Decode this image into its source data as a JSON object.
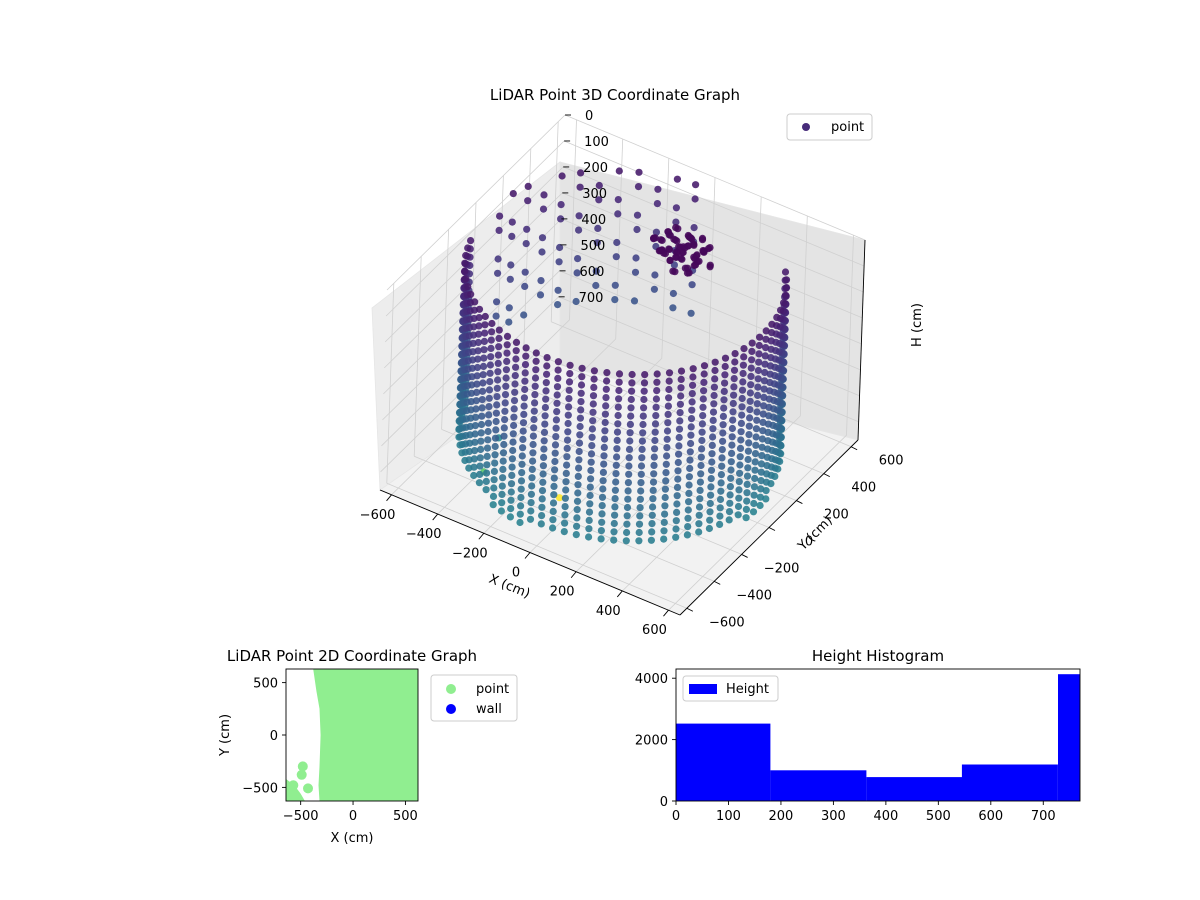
{
  "figure": {
    "background": "#ffffff"
  },
  "chart_data": [
    {
      "type": "scatter",
      "projection": "3d",
      "title": "LiDAR Point 3D Coordinate Graph",
      "xlabel": "X (cm)",
      "ylabel": "Y (cm)",
      "zlabel": "H (cm)",
      "xlim": [
        -650,
        650
      ],
      "ylim": [
        -650,
        650
      ],
      "zlim": [
        0,
        770
      ],
      "z_inverted": true,
      "xticks": [
        "−600",
        "−400",
        "−200",
        "0",
        "200",
        "400",
        "600"
      ],
      "yticks": [
        "−600",
        "−400",
        "−200",
        "0",
        "200",
        "400",
        "600"
      ],
      "zticks": [
        "0",
        "100",
        "200",
        "300",
        "400",
        "500",
        "600",
        "700"
      ],
      "colormap": "viridis",
      "grid": true,
      "legend": {
        "position": "top-right",
        "entries": [
          {
            "label": "point",
            "color": "#472c7a"
          }
        ]
      },
      "structure": {
        "wall_arc_degrees": [
          -165,
          40
        ],
        "wall_radius_cm": 600,
        "wall_height_range_cm": [
          0,
          720
        ],
        "back_wall_arc_degrees": [
          95,
          175
        ],
        "cluster_center_cm": [
          0,
          420,
          100
        ]
      },
      "outliers": [
        {
          "x": -450,
          "y": -120,
          "h": 770,
          "color": "#23898e"
        },
        {
          "x": -80,
          "y": -300,
          "h": 770,
          "color": "#fde725"
        },
        {
          "x": -390,
          "y": -330,
          "h": 770,
          "color": "#56c667"
        }
      ]
    },
    {
      "type": "scatter",
      "title": "LiDAR Point 2D Coordinate Graph",
      "xlabel": "X (cm)",
      "ylabel": "Y (cm)",
      "xlim": [
        -640,
        620
      ],
      "ylim": [
        -630,
        630
      ],
      "xticks": [
        "−500",
        "0",
        "500"
      ],
      "yticks": [
        "−500",
        "0",
        "500"
      ],
      "legend": {
        "position": "outside-right",
        "entries": [
          {
            "label": "point",
            "color": "#90ee90"
          },
          {
            "label": "wall",
            "color": "#0000ff"
          }
        ]
      },
      "point_region_outline": [
        [
          -380,
          630
        ],
        [
          -170,
          630
        ],
        [
          620,
          630
        ],
        [
          620,
          -630
        ],
        [
          -320,
          -630
        ],
        [
          -330,
          -480
        ],
        [
          -320,
          -300
        ],
        [
          -310,
          0
        ],
        [
          -320,
          250
        ],
        [
          -350,
          420
        ]
      ],
      "isolated_points": [
        {
          "x": -480,
          "y": -300
        },
        {
          "x": -490,
          "y": -380
        },
        {
          "x": -430,
          "y": -510
        },
        {
          "x": -570,
          "y": -480
        }
      ],
      "corner_blob": [
        [
          -640,
          -420
        ],
        [
          -560,
          -480
        ],
        [
          -500,
          -560
        ],
        [
          -460,
          -630
        ],
        [
          -640,
          -630
        ]
      ]
    },
    {
      "type": "bar",
      "subtype": "histogram",
      "title": "Height Histogram",
      "xlim": [
        0,
        770
      ],
      "ylim": [
        0,
        4300
      ],
      "xticks": [
        "0",
        "100",
        "200",
        "300",
        "400",
        "500",
        "600",
        "700"
      ],
      "yticks": [
        "0",
        "2000",
        "4000"
      ],
      "bin_edges": [
        0,
        180,
        363,
        545,
        728,
        770
      ],
      "values": [
        2520,
        1000,
        780,
        1190,
        4130
      ],
      "color": "#0000ff",
      "legend": {
        "position": "top-left",
        "entries": [
          {
            "label": "Height",
            "color": "#0000ff"
          }
        ]
      }
    }
  ]
}
